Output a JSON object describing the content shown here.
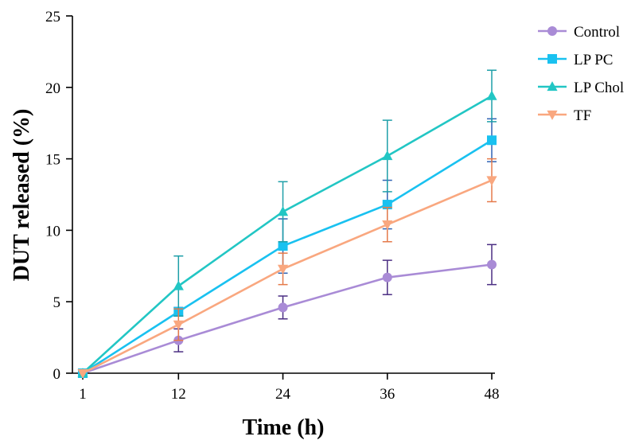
{
  "chart_data": {
    "type": "line",
    "title": "",
    "xlabel": "Time (h)",
    "ylabel": "DUT released (%)",
    "x": [
      1,
      12,
      24,
      36,
      48
    ],
    "x_tick_labels": [
      "1",
      "12",
      "24",
      "36",
      "48"
    ],
    "xlim": [
      1,
      48
    ],
    "ylim": [
      0,
      25
    ],
    "y_ticks": [
      0,
      5,
      10,
      15,
      20,
      25
    ],
    "grid": false,
    "legend_position": "top-right",
    "series": [
      {
        "name": "Control",
        "marker": "circle",
        "color": "#A98BD6",
        "error_color": "#4B2E83",
        "values": [
          0,
          2.3,
          4.6,
          6.7,
          7.6
        ],
        "errors": [
          0,
          0.8,
          0.8,
          1.2,
          1.4
        ]
      },
      {
        "name": "LP PC",
        "marker": "square",
        "color": "#19C1F0",
        "error_color": "#2F63B4",
        "values": [
          0,
          4.3,
          8.9,
          11.8,
          16.3
        ],
        "errors": [
          0,
          0.3,
          1.9,
          1.7,
          1.5
        ]
      },
      {
        "name": "LP Chol",
        "marker": "triangle-up",
        "color": "#22C6C4",
        "error_color": "#1E9FA8",
        "values": [
          0,
          6.1,
          11.3,
          15.2,
          19.4
        ],
        "errors": [
          0,
          2.1,
          2.1,
          2.5,
          1.8
        ]
      },
      {
        "name": "TF",
        "marker": "triangle-down",
        "color": "#F9A77F",
        "error_color": "#E57A4A",
        "values": [
          0,
          3.4,
          7.3,
          10.4,
          13.5
        ],
        "errors": [
          0,
          1.1,
          1.1,
          1.2,
          1.5
        ]
      }
    ]
  }
}
